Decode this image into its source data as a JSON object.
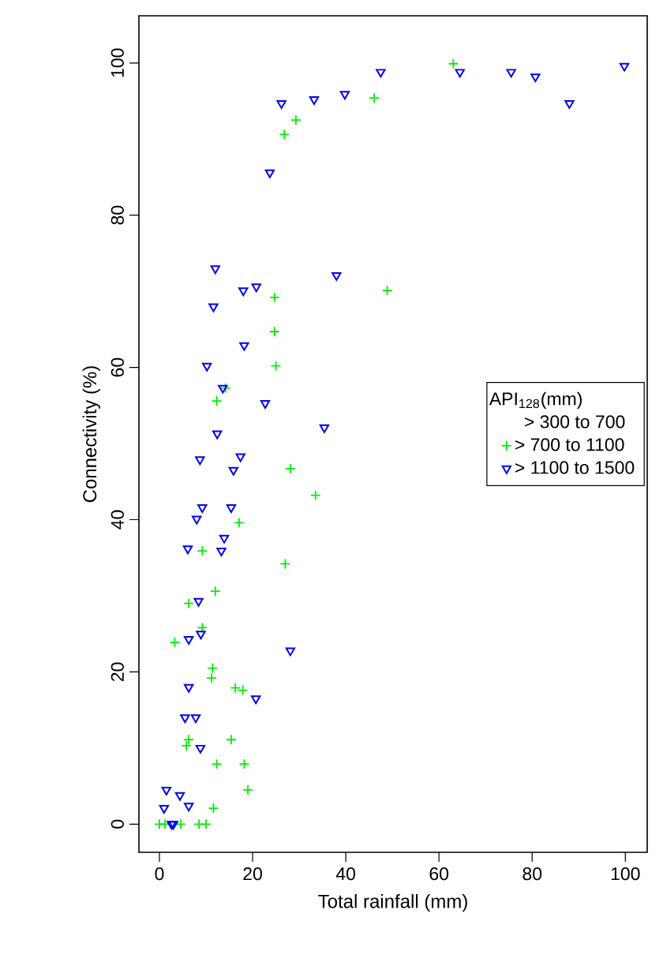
{
  "chart_data": {
    "type": "scatter",
    "xlabel": "Total rainfall (mm)",
    "ylabel": "Connectivity (%)",
    "legend_title": "API$_{128}$(mm)",
    "xlim": [
      -4.4,
      104.7
    ],
    "ylim": [
      -3.7,
      106.2
    ],
    "xticks": [
      0,
      20,
      40,
      60,
      80,
      100
    ],
    "yticks": [
      0,
      20,
      40,
      60,
      80,
      100
    ],
    "grid": false,
    "legend": "right",
    "series": [
      {
        "name": "> 300 to 700",
        "marker": "none"
      },
      {
        "name": "> 700 to 1100",
        "color": "#00ee00",
        "marker": "cross",
        "x": [
          0,
          1.2,
          4.6,
          8.5,
          10,
          11.6,
          19.0,
          12.3,
          18.2,
          6.3,
          5.8,
          15.4,
          11.4,
          11.2,
          16.3,
          17.9,
          3.3,
          9.2,
          12.0,
          6.3,
          9.2,
          27.0,
          17.1,
          24.7,
          48.9,
          24.7,
          25.0,
          14.2,
          12.3,
          28.1,
          33.5,
          63.1,
          46.1,
          29.3,
          26.8
        ],
        "values": [
          0,
          0,
          0,
          0,
          0,
          2.1,
          4.5,
          7.9,
          7.9,
          11.1,
          10.3,
          11.1,
          20.5,
          19.2,
          17.9,
          17.6,
          23.9,
          25.8,
          30.6,
          29.0,
          35.9,
          34.2,
          39.6,
          69.2,
          70.1,
          64.7,
          60.2,
          57.3,
          55.6,
          46.7,
          43.2,
          99.9,
          95.4,
          92.5,
          90.6
        ]
      },
      {
        "name": "> 1100 to 1500",
        "color": "#0000ee",
        "marker": "triangle",
        "x": [
          99.8,
          64.5,
          75.5,
          80.7,
          88.0,
          47.5,
          39.8,
          33.2,
          26.2,
          23.7,
          12.0,
          38.0,
          18.0,
          20.8,
          11.6,
          18.2,
          10.2,
          13.6,
          22.7,
          35.4,
          12.4,
          8.7,
          17.4,
          15.9,
          9.2,
          8.0,
          15.4,
          13.9,
          6.1,
          13.3,
          8.4,
          6.3,
          8.9,
          28.1,
          6.3,
          20.7,
          5.5,
          7.8,
          8.8,
          1.5,
          4.4,
          6.3,
          1.0,
          2.6,
          3.0
        ],
        "values": [
          99.6,
          98.8,
          98.8,
          98.2,
          94.7,
          98.8,
          95.9,
          95.2,
          94.7,
          85.6,
          73.0,
          72.1,
          70.1,
          70.6,
          68.0,
          62.9,
          60.2,
          57.3,
          55.3,
          52.1,
          51.3,
          47.9,
          48.3,
          46.5,
          41.6,
          40.1,
          41.6,
          37.6,
          36.2,
          35.9,
          29.3,
          24.3,
          25.0,
          22.8,
          18.0,
          16.5,
          14.0,
          14.0,
          10.0,
          4.5,
          3.8,
          2.4,
          2.1,
          0,
          0
        ]
      }
    ]
  }
}
